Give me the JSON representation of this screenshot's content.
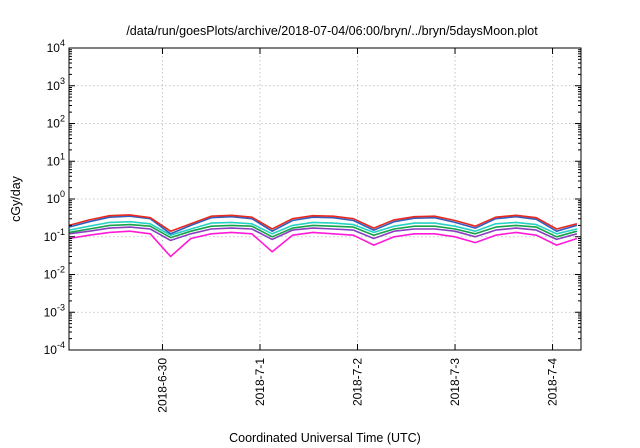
{
  "chart_data": {
    "type": "line",
    "title": "/data/run/goesPlots/archive/2018-07-04/06:00/bryn/../bryn/5daysMoon.plot",
    "xlabel": "Coordinated Universal Time (UTC)",
    "ylabel": "cGy/day",
    "xlim": [
      "2018-06-29T01:00",
      "2018-07-04T07:00"
    ],
    "ylim": [
      0.0001,
      10000
    ],
    "yscale": "log",
    "grid": true,
    "legend": "none",
    "yticks": [
      {
        "base": "10",
        "exp": "-4",
        "value": 0.0001
      },
      {
        "base": "10",
        "exp": "-3",
        "value": 0.001
      },
      {
        "base": "10",
        "exp": "-2",
        "value": 0.01
      },
      {
        "base": "10",
        "exp": "-1",
        "value": 0.1
      },
      {
        "base": "10",
        "exp": "0",
        "value": 1
      },
      {
        "base": "10",
        "exp": "1",
        "value": 10
      },
      {
        "base": "10",
        "exp": "2",
        "value": 100
      },
      {
        "base": "10",
        "exp": "3",
        "value": 1000
      },
      {
        "base": "10",
        "exp": "4",
        "value": 10000
      }
    ],
    "xticks": [
      {
        "label": "2018-6-30",
        "value": "2018-06-30T00:00"
      },
      {
        "label": "2018-7-1",
        "value": "2018-07-01T00:00"
      },
      {
        "label": "2018-7-2",
        "value": "2018-07-02T00:00"
      },
      {
        "label": "2018-7-3",
        "value": "2018-07-03T00:00"
      },
      {
        "label": "2018-7-4",
        "value": "2018-07-04T00:00"
      }
    ],
    "x": [
      "2018-06-29T01:00",
      "2018-06-29T06:00",
      "2018-06-29T11:00",
      "2018-06-29T16:00",
      "2018-06-29T21:00",
      "2018-06-30T02:00",
      "2018-06-30T07:00",
      "2018-06-30T12:00",
      "2018-06-30T17:00",
      "2018-06-30T22:00",
      "2018-07-01T03:00",
      "2018-07-01T08:00",
      "2018-07-01T13:00",
      "2018-07-01T18:00",
      "2018-07-01T23:00",
      "2018-07-02T04:00",
      "2018-07-02T09:00",
      "2018-07-02T14:00",
      "2018-07-02T19:00",
      "2018-07-03T00:00",
      "2018-07-03T05:00",
      "2018-07-03T10:00",
      "2018-07-03T15:00",
      "2018-07-03T20:00",
      "2018-07-04T01:00",
      "2018-07-04T06:00"
    ],
    "series": [
      {
        "color": "#e8291f",
        "values": [
          0.2,
          0.28,
          0.36,
          0.38,
          0.32,
          0.14,
          0.22,
          0.35,
          0.37,
          0.33,
          0.16,
          0.3,
          0.36,
          0.35,
          0.3,
          0.17,
          0.28,
          0.34,
          0.35,
          0.27,
          0.19,
          0.33,
          0.37,
          0.32,
          0.16,
          0.22
        ]
      },
      {
        "color": "#2f5fbf",
        "values": [
          0.18,
          0.25,
          0.33,
          0.35,
          0.3,
          0.12,
          0.2,
          0.32,
          0.34,
          0.3,
          0.14,
          0.27,
          0.33,
          0.32,
          0.27,
          0.15,
          0.25,
          0.31,
          0.32,
          0.24,
          0.17,
          0.3,
          0.34,
          0.29,
          0.14,
          0.2
        ]
      },
      {
        "color": "#25d3c4",
        "values": [
          0.15,
          0.19,
          0.24,
          0.25,
          0.22,
          0.11,
          0.16,
          0.23,
          0.24,
          0.22,
          0.12,
          0.2,
          0.24,
          0.23,
          0.21,
          0.13,
          0.19,
          0.23,
          0.23,
          0.19,
          0.14,
          0.22,
          0.24,
          0.21,
          0.12,
          0.16
        ]
      },
      {
        "color": "#17a34a",
        "values": [
          0.13,
          0.16,
          0.2,
          0.21,
          0.19,
          0.095,
          0.14,
          0.19,
          0.2,
          0.19,
          0.1,
          0.17,
          0.2,
          0.19,
          0.18,
          0.11,
          0.16,
          0.19,
          0.19,
          0.16,
          0.12,
          0.18,
          0.2,
          0.18,
          0.1,
          0.14
        ]
      },
      {
        "color": "#8a3fc0",
        "values": [
          0.12,
          0.14,
          0.17,
          0.18,
          0.16,
          0.08,
          0.12,
          0.16,
          0.17,
          0.16,
          0.085,
          0.15,
          0.17,
          0.16,
          0.15,
          0.09,
          0.14,
          0.16,
          0.16,
          0.14,
          0.1,
          0.15,
          0.17,
          0.15,
          0.085,
          0.12
        ]
      },
      {
        "color": "#ff1ad9",
        "values": [
          0.09,
          0.11,
          0.13,
          0.14,
          0.12,
          0.03,
          0.09,
          0.12,
          0.13,
          0.12,
          0.04,
          0.11,
          0.13,
          0.12,
          0.11,
          0.06,
          0.1,
          0.12,
          0.12,
          0.1,
          0.07,
          0.11,
          0.13,
          0.11,
          0.06,
          0.09
        ]
      }
    ]
  }
}
